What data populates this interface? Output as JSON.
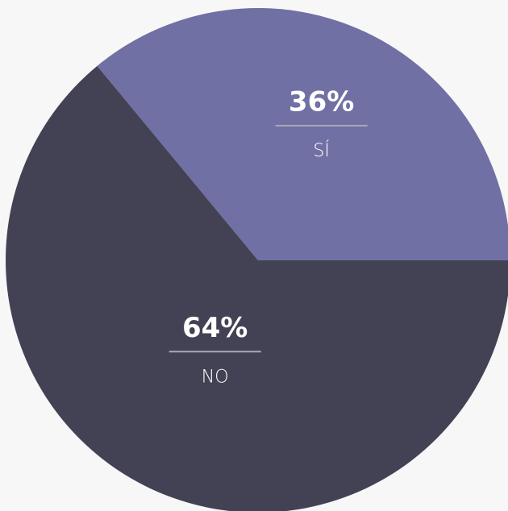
{
  "chart_data": {
    "type": "pie",
    "categories": [
      "SÍ",
      "NO"
    ],
    "values": [
      36,
      64
    ],
    "value_labels": [
      "36%",
      "64%"
    ],
    "colors": [
      "#7070a5",
      "#434254"
    ]
  }
}
